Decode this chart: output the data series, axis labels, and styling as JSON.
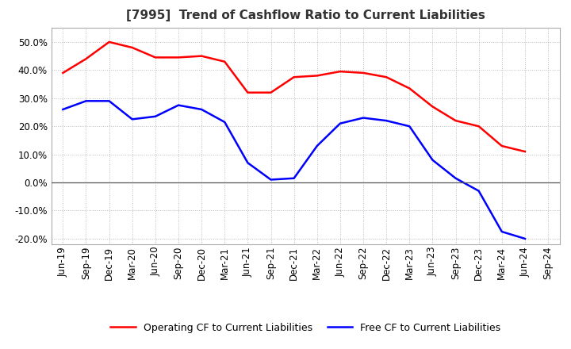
{
  "title": "[7995]  Trend of Cashflow Ratio to Current Liabilities",
  "x_labels": [
    "Jun-19",
    "Sep-19",
    "Dec-19",
    "Mar-20",
    "Jun-20",
    "Sep-20",
    "Dec-20",
    "Mar-21",
    "Jun-21",
    "Sep-21",
    "Dec-21",
    "Mar-22",
    "Jun-22",
    "Sep-22",
    "Dec-22",
    "Mar-23",
    "Jun-23",
    "Sep-23",
    "Dec-23",
    "Mar-24",
    "Jun-24",
    "Sep-24"
  ],
  "operating_cf": [
    39.0,
    44.0,
    50.0,
    48.0,
    44.5,
    44.5,
    45.0,
    43.0,
    32.0,
    32.0,
    37.5,
    38.0,
    39.5,
    39.0,
    37.5,
    33.5,
    27.0,
    22.0,
    20.0,
    13.0,
    11.0,
    null
  ],
  "free_cf": [
    26.0,
    29.0,
    29.0,
    22.5,
    23.5,
    27.5,
    26.0,
    21.5,
    7.0,
    1.0,
    1.5,
    13.0,
    21.0,
    23.0,
    22.0,
    20.0,
    8.0,
    1.5,
    -3.0,
    -17.5,
    -20.0,
    null
  ],
  "operating_cf_color": "#FF0000",
  "free_cf_color": "#0000FF",
  "ylim": [
    -22.0,
    55.0
  ],
  "yticks": [
    -20.0,
    -10.0,
    0.0,
    10.0,
    20.0,
    30.0,
    40.0,
    50.0
  ],
  "background_color": "#FFFFFF",
  "plot_bg_color": "#FFFFFF",
  "grid_color": "#BBBBBB",
  "legend_op": "Operating CF to Current Liabilities",
  "legend_free": "Free CF to Current Liabilities",
  "title_fontsize": 11,
  "label_fontsize": 8.5
}
